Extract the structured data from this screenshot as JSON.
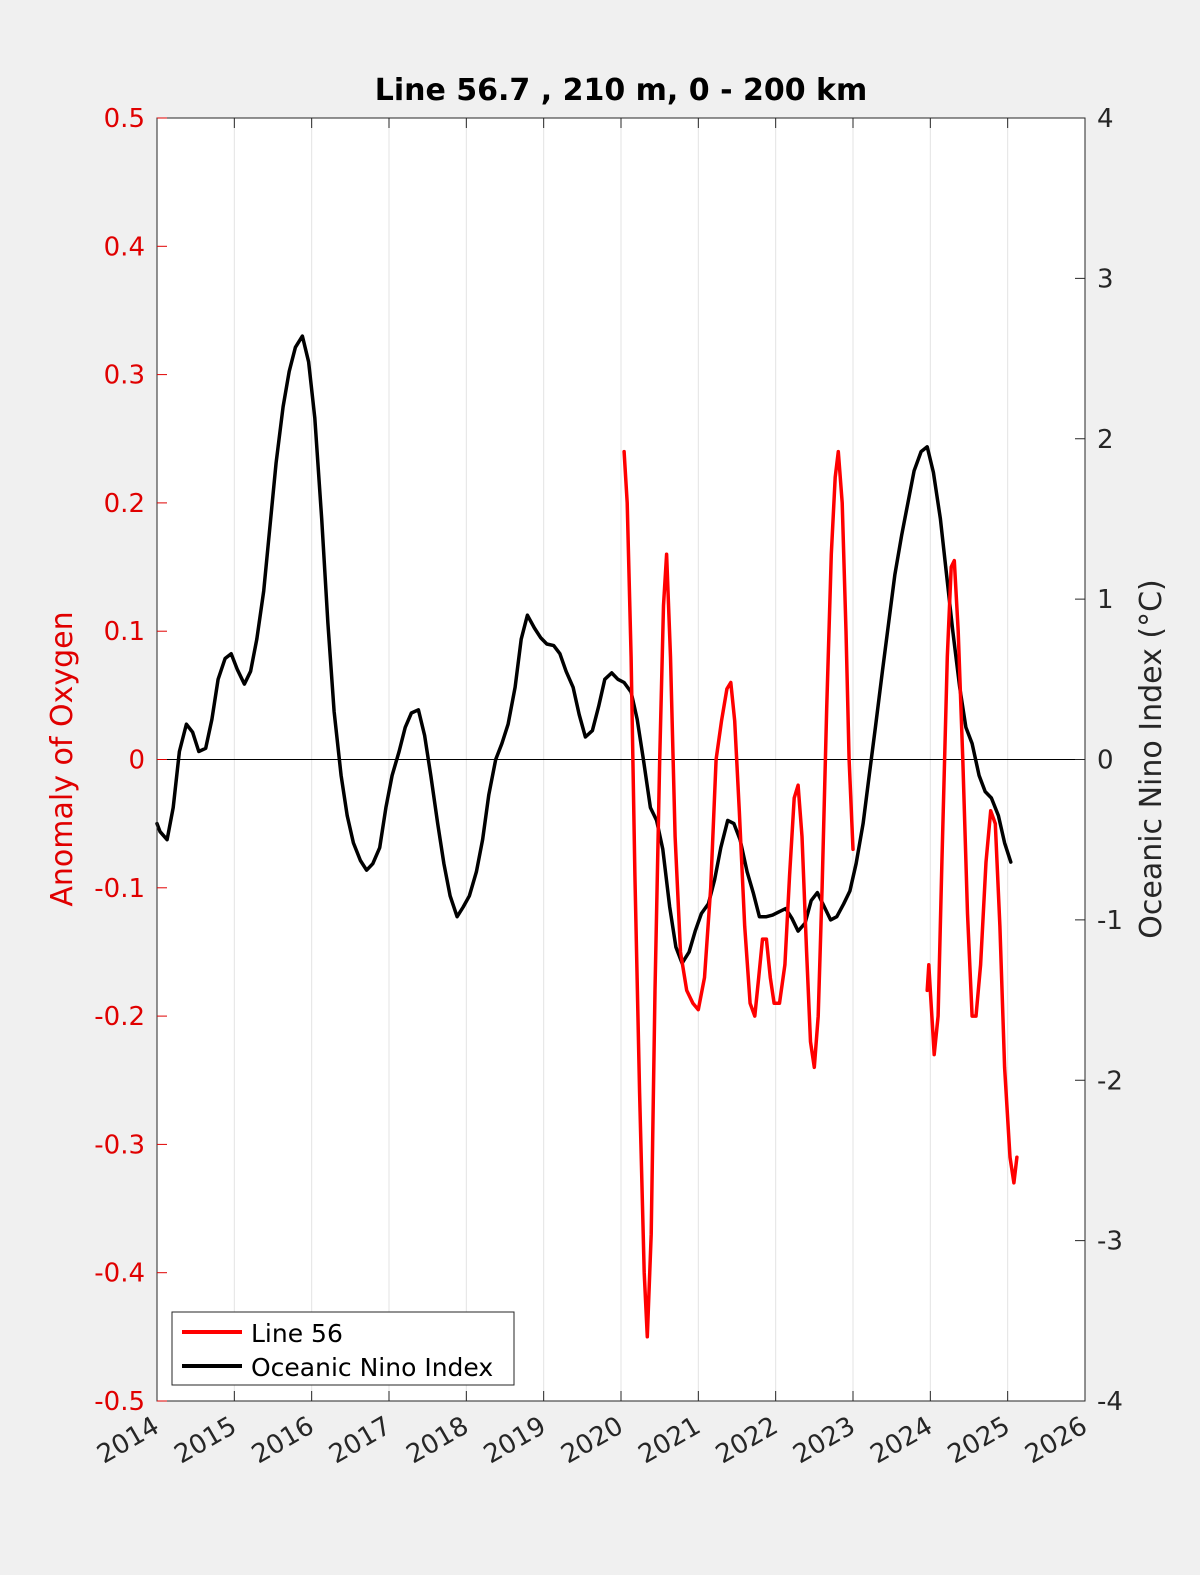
{
  "chart_data": {
    "type": "line",
    "title": "Line 56.7 , 210 m, 0 - 200 km",
    "xlabel": "",
    "ylabel_left": "Anomaly of Oxygen",
    "ylabel_right": "Oceanic Nino Index (°C)",
    "xlim": [
      2014,
      2026
    ],
    "ylim_left": [
      -0.5,
      0.5
    ],
    "ylim_right": [
      -4,
      4
    ],
    "xticks": [
      "2014",
      "2015",
      "2016",
      "2017",
      "2018",
      "2019",
      "2020",
      "2021",
      "2022",
      "2023",
      "2024",
      "2025",
      "2026"
    ],
    "yticks_left": [
      "-0.5",
      "-0.4",
      "-0.3",
      "-0.2",
      "-0.1",
      "0",
      "0.1",
      "0.2",
      "0.3",
      "0.4",
      "0.5"
    ],
    "yticks_right": [
      "-4",
      "-3",
      "-2",
      "-1",
      "0",
      "1",
      "2",
      "3",
      "4"
    ],
    "grid": "vertical",
    "legend_position": "bottom-left",
    "colors": {
      "line56": "#ff0000",
      "oni": "#000000",
      "left_axis": "#e00000"
    },
    "series": [
      {
        "name": "Line 56",
        "axis": "left",
        "segments": [
          [
            [
              2020.04,
              0.24
            ],
            [
              2020.08,
              0.2
            ],
            [
              2020.13,
              0.08
            ],
            [
              2020.18,
              -0.09
            ],
            [
              2020.24,
              -0.26
            ],
            [
              2020.3,
              -0.4
            ],
            [
              2020.34,
              -0.45
            ],
            [
              2020.39,
              -0.37
            ],
            [
              2020.44,
              -0.18
            ],
            [
              2020.5,
              0.0
            ],
            [
              2020.55,
              0.12
            ],
            [
              2020.59,
              0.16
            ],
            [
              2020.64,
              0.08
            ],
            [
              2020.7,
              -0.06
            ],
            [
              2020.77,
              -0.15
            ],
            [
              2020.85,
              -0.18
            ],
            [
              2020.93,
              -0.19
            ],
            [
              2021.0,
              -0.195
            ],
            [
              2021.08,
              -0.17
            ],
            [
              2021.16,
              -0.1
            ],
            [
              2021.23,
              0.0
            ],
            [
              2021.3,
              0.03
            ],
            [
              2021.37,
              0.055
            ],
            [
              2021.42,
              0.06
            ],
            [
              2021.47,
              0.03
            ],
            [
              2021.53,
              -0.04
            ],
            [
              2021.6,
              -0.13
            ],
            [
              2021.67,
              -0.19
            ],
            [
              2021.73,
              -0.2
            ],
            [
              2021.78,
              -0.17
            ],
            [
              2021.83,
              -0.14
            ],
            [
              2021.88,
              -0.14
            ],
            [
              2021.93,
              -0.17
            ],
            [
              2021.98,
              -0.19
            ],
            [
              2022.05,
              -0.19
            ],
            [
              2022.12,
              -0.16
            ],
            [
              2022.18,
              -0.09
            ],
            [
              2022.24,
              -0.03
            ],
            [
              2022.29,
              -0.02
            ],
            [
              2022.34,
              -0.06
            ],
            [
              2022.4,
              -0.15
            ],
            [
              2022.45,
              -0.22
            ],
            [
              2022.5,
              -0.24
            ],
            [
              2022.55,
              -0.2
            ],
            [
              2022.6,
              -0.1
            ],
            [
              2022.66,
              0.04
            ],
            [
              2022.72,
              0.16
            ],
            [
              2022.77,
              0.22
            ],
            [
              2022.81,
              0.24
            ],
            [
              2022.86,
              0.2
            ],
            [
              2022.91,
              0.1
            ],
            [
              2022.95,
              0.0
            ],
            [
              2023.0,
              -0.07
            ]
          ],
          [
            [
              2023.96,
              -0.18
            ],
            [
              2023.98,
              -0.16
            ],
            [
              2024.0,
              -0.18
            ],
            [
              2024.05,
              -0.23
            ],
            [
              2024.1,
              -0.2
            ],
            [
              2024.15,
              -0.08
            ],
            [
              2024.22,
              0.08
            ],
            [
              2024.27,
              0.15
            ],
            [
              2024.31,
              0.155
            ],
            [
              2024.36,
              0.1
            ],
            [
              2024.42,
              0.0
            ],
            [
              2024.48,
              -0.12
            ],
            [
              2024.54,
              -0.2
            ],
            [
              2024.59,
              -0.2
            ],
            [
              2024.65,
              -0.16
            ],
            [
              2024.72,
              -0.08
            ],
            [
              2024.78,
              -0.04
            ],
            [
              2024.84,
              -0.05
            ],
            [
              2024.9,
              -0.13
            ],
            [
              2024.96,
              -0.24
            ],
            [
              2025.03,
              -0.31
            ],
            [
              2025.08,
              -0.33
            ],
            [
              2025.12,
              -0.31
            ]
          ]
        ]
      },
      {
        "name": "Oceanic Nino Index",
        "axis": "right",
        "points": [
          [
            2014.0,
            -0.4
          ],
          [
            2014.04,
            -0.45
          ],
          [
            2014.13,
            -0.5
          ],
          [
            2014.21,
            -0.3
          ],
          [
            2014.29,
            0.05
          ],
          [
            2014.38,
            0.22
          ],
          [
            2014.46,
            0.17
          ],
          [
            2014.54,
            0.05
          ],
          [
            2014.63,
            0.07
          ],
          [
            2014.71,
            0.25
          ],
          [
            2014.79,
            0.5
          ],
          [
            2014.88,
            0.63
          ],
          [
            2014.96,
            0.66
          ],
          [
            2015.04,
            0.56
          ],
          [
            2015.13,
            0.47
          ],
          [
            2015.21,
            0.55
          ],
          [
            2015.29,
            0.75
          ],
          [
            2015.38,
            1.05
          ],
          [
            2015.46,
            1.45
          ],
          [
            2015.54,
            1.85
          ],
          [
            2015.63,
            2.2
          ],
          [
            2015.71,
            2.42
          ],
          [
            2015.79,
            2.57
          ],
          [
            2015.88,
            2.64
          ],
          [
            2015.96,
            2.48
          ],
          [
            2016.04,
            2.13
          ],
          [
            2016.13,
            1.5
          ],
          [
            2016.21,
            0.85
          ],
          [
            2016.29,
            0.3
          ],
          [
            2016.38,
            -0.1
          ],
          [
            2016.46,
            -0.35
          ],
          [
            2016.54,
            -0.52
          ],
          [
            2016.63,
            -0.63
          ],
          [
            2016.71,
            -0.69
          ],
          [
            2016.79,
            -0.65
          ],
          [
            2016.88,
            -0.55
          ],
          [
            2016.96,
            -0.3
          ],
          [
            2017.04,
            -0.1
          ],
          [
            2017.13,
            0.05
          ],
          [
            2017.21,
            0.2
          ],
          [
            2017.29,
            0.29
          ],
          [
            2017.38,
            0.31
          ],
          [
            2017.46,
            0.15
          ],
          [
            2017.54,
            -0.1
          ],
          [
            2017.63,
            -0.4
          ],
          [
            2017.71,
            -0.65
          ],
          [
            2017.79,
            -0.85
          ],
          [
            2017.88,
            -0.98
          ],
          [
            2017.96,
            -0.92
          ],
          [
            2018.04,
            -0.85
          ],
          [
            2018.13,
            -0.7
          ],
          [
            2018.21,
            -0.5
          ],
          [
            2018.29,
            -0.22
          ],
          [
            2018.38,
            0.0
          ],
          [
            2018.46,
            0.1
          ],
          [
            2018.54,
            0.22
          ],
          [
            2018.63,
            0.45
          ],
          [
            2018.71,
            0.75
          ],
          [
            2018.79,
            0.9
          ],
          [
            2018.88,
            0.82
          ],
          [
            2018.96,
            0.76
          ],
          [
            2019.04,
            0.72
          ],
          [
            2019.13,
            0.71
          ],
          [
            2019.21,
            0.66
          ],
          [
            2019.29,
            0.55
          ],
          [
            2019.38,
            0.45
          ],
          [
            2019.46,
            0.28
          ],
          [
            2019.54,
            0.14
          ],
          [
            2019.63,
            0.18
          ],
          [
            2019.71,
            0.33
          ],
          [
            2019.79,
            0.5
          ],
          [
            2019.88,
            0.54
          ],
          [
            2019.96,
            0.5
          ],
          [
            2020.04,
            0.48
          ],
          [
            2020.13,
            0.42
          ],
          [
            2020.21,
            0.25
          ],
          [
            2020.29,
            0.0
          ],
          [
            2020.38,
            -0.3
          ],
          [
            2020.46,
            -0.38
          ],
          [
            2020.54,
            -0.56
          ],
          [
            2020.63,
            -0.92
          ],
          [
            2020.71,
            -1.17
          ],
          [
            2020.79,
            -1.27
          ],
          [
            2020.88,
            -1.2
          ],
          [
            2020.96,
            -1.07
          ],
          [
            2021.04,
            -0.96
          ],
          [
            2021.13,
            -0.9
          ],
          [
            2021.21,
            -0.75
          ],
          [
            2021.29,
            -0.55
          ],
          [
            2021.38,
            -0.38
          ],
          [
            2021.46,
            -0.4
          ],
          [
            2021.54,
            -0.5
          ],
          [
            2021.63,
            -0.7
          ],
          [
            2021.71,
            -0.83
          ],
          [
            2021.79,
            -0.98
          ],
          [
            2021.88,
            -0.98
          ],
          [
            2021.96,
            -0.97
          ],
          [
            2022.04,
            -0.95
          ],
          [
            2022.13,
            -0.93
          ],
          [
            2022.21,
            -0.99
          ],
          [
            2022.29,
            -1.07
          ],
          [
            2022.38,
            -1.02
          ],
          [
            2022.46,
            -0.88
          ],
          [
            2022.54,
            -0.83
          ],
          [
            2022.63,
            -0.92
          ],
          [
            2022.71,
            -1.0
          ],
          [
            2022.79,
            -0.98
          ],
          [
            2022.88,
            -0.9
          ],
          [
            2022.96,
            -0.82
          ],
          [
            2023.04,
            -0.65
          ],
          [
            2023.13,
            -0.4
          ],
          [
            2023.21,
            -0.1
          ],
          [
            2023.29,
            0.2
          ],
          [
            2023.38,
            0.55
          ],
          [
            2023.46,
            0.85
          ],
          [
            2023.54,
            1.15
          ],
          [
            2023.63,
            1.4
          ],
          [
            2023.71,
            1.6
          ],
          [
            2023.79,
            1.8
          ],
          [
            2023.88,
            1.92
          ],
          [
            2023.96,
            1.95
          ],
          [
            2024.04,
            1.79
          ],
          [
            2024.13,
            1.5
          ],
          [
            2024.21,
            1.15
          ],
          [
            2024.29,
            0.8
          ],
          [
            2024.38,
            0.45
          ],
          [
            2024.46,
            0.2
          ],
          [
            2024.54,
            0.1
          ],
          [
            2024.63,
            -0.1
          ],
          [
            2024.71,
            -0.2
          ],
          [
            2024.79,
            -0.24
          ],
          [
            2024.88,
            -0.35
          ],
          [
            2024.96,
            -0.52
          ],
          [
            2025.04,
            -0.64
          ]
        ]
      }
    ]
  }
}
